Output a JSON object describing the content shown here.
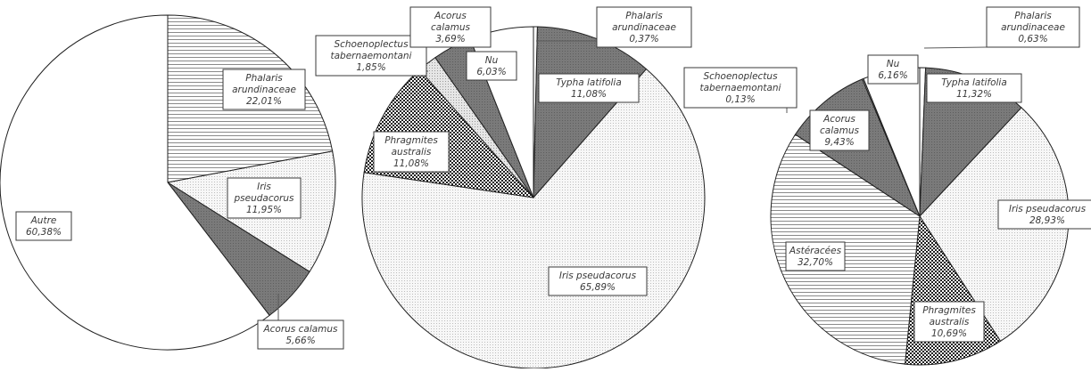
{
  "chart_data": [
    {
      "type": "pie",
      "title": "",
      "slices": [
        {
          "label": "Phalaris arundinaceae",
          "value": 22.01,
          "text": "22,01%",
          "pattern": "hlines"
        },
        {
          "label": "Iris pseudacorus",
          "value": 11.95,
          "text": "11,95%",
          "pattern": "dots"
        },
        {
          "label": "Acorus calamus",
          "value": 5.66,
          "text": "5,66%",
          "pattern": "darkgray"
        },
        {
          "label": "Autre",
          "value": 60.38,
          "text": "60,38%",
          "pattern": "white"
        }
      ]
    },
    {
      "type": "pie",
      "title": "",
      "slices": [
        {
          "label": "Phalaris arundinaceae",
          "value": 0.37,
          "text": "0,37%",
          "pattern": "white"
        },
        {
          "label": "Typha latifolia",
          "value": 11.08,
          "text": "11,08%",
          "pattern": "darkgray"
        },
        {
          "label": "Iris pseudacorus",
          "value": 65.89,
          "text": "65,89%",
          "pattern": "dots"
        },
        {
          "label": "Phragmites australis",
          "value": 11.08,
          "text": "11,08%",
          "pattern": "checker"
        },
        {
          "label": "Schoenoplectus tabernaemontani",
          "value": 1.85,
          "text": "1,85%",
          "pattern": "lightdots"
        },
        {
          "label": "Acorus calamus",
          "value": 3.69,
          "text": "3,69%",
          "pattern": "darkgray"
        },
        {
          "label": "Nu",
          "value": 6.03,
          "text": "6,03%",
          "pattern": "white"
        }
      ]
    },
    {
      "type": "pie",
      "title": "",
      "slices": [
        {
          "label": "Phalaris arundinaceae",
          "value": 0.63,
          "text": "0,63%",
          "pattern": "white"
        },
        {
          "label": "Typha latifolia",
          "value": 11.32,
          "text": "11,32%",
          "pattern": "darkgray"
        },
        {
          "label": "Iris pseudacorus",
          "value": 28.93,
          "text": "28,93%",
          "pattern": "dots"
        },
        {
          "label": "Phragmites australis",
          "value": 10.69,
          "text": "10,69%",
          "pattern": "checker"
        },
        {
          "label": "Astéracées",
          "value": 32.7,
          "text": "32,70%",
          "pattern": "hlines"
        },
        {
          "label": "Acorus calamus",
          "value": 9.43,
          "text": "9,43%",
          "pattern": "darkgray"
        },
        {
          "label": "Schoenoplectus tabernaemontani",
          "value": 0.13,
          "text": "0,13%",
          "pattern": "white"
        },
        {
          "label": "Nu",
          "value": 6.16,
          "text": "6,16%",
          "pattern": "white"
        }
      ]
    }
  ]
}
